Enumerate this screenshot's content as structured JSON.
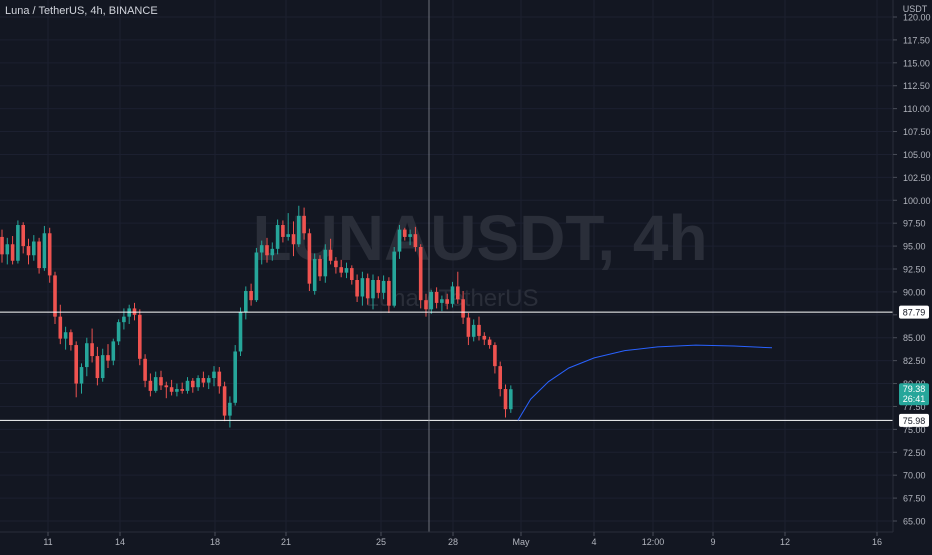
{
  "header": {
    "symbol_line": "Luna / TetherUS, 4h, BINANCE",
    "currency": "USDT"
  },
  "watermark": {
    "ticker": "LUNAUSDT, 4h",
    "description": "Luna / TetherUS"
  },
  "price_badge": {
    "price": "79.38",
    "countdown": "26:41"
  },
  "colors": {
    "background": "#131722",
    "up": "#26a69a",
    "down": "#ef5350",
    "projection": "#2962ff",
    "line": "#ffffff",
    "crosshair": "#9598a1",
    "axis_text": "#b2b5be"
  },
  "chart_data": {
    "type": "candlestick",
    "y_axis_ticks": [
      "120.00",
      "117.50",
      "115.00",
      "112.50",
      "110.00",
      "107.50",
      "105.00",
      "102.50",
      "100.00",
      "97.50",
      "95.00",
      "92.50",
      "90.00",
      "87.50",
      "85.00",
      "82.50",
      "80.00",
      "77.50",
      "75.00",
      "72.50",
      "70.00",
      "67.50",
      "65.00"
    ],
    "y_axis_range": [
      64,
      121
    ],
    "x_axis_ticks": [
      "11",
      "14",
      "18",
      "21",
      "25",
      "28",
      "May",
      "4",
      "12:00",
      "9",
      "12",
      "16"
    ],
    "horizontal_lines": [
      {
        "label": "87.79",
        "value": 87.79
      },
      {
        "label": "75.98",
        "value": 75.98
      }
    ],
    "candles_ohlc": [
      [
        96.0,
        96.8,
        93.2,
        94.1
      ],
      [
        94.1,
        95.9,
        93.0,
        95.2
      ],
      [
        95.2,
        96.1,
        93.0,
        93.4
      ],
      [
        93.4,
        97.8,
        93.1,
        97.3
      ],
      [
        97.3,
        97.6,
        94.2,
        95.0
      ],
      [
        95.0,
        95.8,
        93.0,
        94.0
      ],
      [
        94.0,
        96.2,
        93.4,
        95.5
      ],
      [
        95.5,
        95.9,
        92.0,
        92.6
      ],
      [
        92.6,
        97.2,
        92.3,
        96.4
      ],
      [
        96.4,
        97.0,
        91.0,
        91.8
      ],
      [
        91.8,
        92.2,
        86.5,
        87.3
      ],
      [
        87.3,
        88.6,
        84.3,
        84.9
      ],
      [
        84.9,
        86.2,
        83.7,
        85.6
      ],
      [
        85.6,
        85.9,
        83.6,
        84.2
      ],
      [
        84.2,
        84.6,
        78.5,
        80.0
      ],
      [
        80.0,
        82.2,
        78.9,
        81.8
      ],
      [
        81.8,
        85.0,
        80.8,
        84.4
      ],
      [
        84.4,
        86.0,
        82.3,
        83.0
      ],
      [
        83.0,
        84.0,
        79.8,
        80.6
      ],
      [
        80.6,
        83.8,
        80.2,
        83.1
      ],
      [
        83.1,
        84.3,
        81.7,
        82.5
      ],
      [
        82.5,
        84.9,
        82.0,
        84.6
      ],
      [
        84.6,
        87.0,
        84.2,
        86.7
      ],
      [
        86.7,
        88.2,
        85.9,
        87.3
      ],
      [
        87.3,
        88.6,
        86.5,
        88.2
      ],
      [
        88.2,
        88.8,
        86.9,
        87.5
      ],
      [
        87.5,
        88.1,
        82.0,
        82.7
      ],
      [
        82.7,
        83.2,
        79.6,
        80.3
      ],
      [
        80.3,
        81.1,
        78.6,
        79.2
      ],
      [
        79.2,
        81.3,
        79.0,
        80.7
      ],
      [
        80.7,
        81.4,
        79.3,
        79.8
      ],
      [
        79.8,
        80.2,
        78.4,
        79.6
      ],
      [
        79.6,
        80.4,
        78.7,
        79.1
      ],
      [
        79.1,
        80.0,
        78.6,
        79.4
      ],
      [
        79.4,
        80.1,
        78.9,
        79.2
      ],
      [
        79.2,
        80.7,
        78.9,
        80.3
      ],
      [
        80.3,
        80.6,
        79.0,
        79.6
      ],
      [
        79.6,
        80.9,
        79.2,
        80.6
      ],
      [
        80.6,
        81.3,
        79.6,
        80.1
      ],
      [
        80.1,
        80.9,
        79.4,
        80.6
      ],
      [
        80.6,
        81.9,
        79.7,
        81.3
      ],
      [
        81.3,
        81.8,
        78.9,
        79.7
      ],
      [
        79.7,
        80.2,
        75.9,
        76.5
      ],
      [
        76.5,
        78.6,
        75.2,
        77.9
      ],
      [
        77.9,
        84.2,
        77.6,
        83.5
      ],
      [
        83.5,
        88.3,
        83.0,
        87.8
      ],
      [
        87.8,
        90.6,
        87.0,
        90.1
      ],
      [
        90.1,
        90.9,
        88.5,
        89.1
      ],
      [
        89.1,
        94.8,
        88.9,
        94.3
      ],
      [
        94.3,
        95.6,
        93.0,
        95.1
      ],
      [
        95.1,
        95.9,
        93.2,
        94.0
      ],
      [
        94.0,
        95.4,
        93.4,
        94.7
      ],
      [
        94.7,
        97.9,
        94.1,
        97.3
      ],
      [
        97.3,
        97.8,
        95.4,
        96.0
      ],
      [
        96.0,
        98.6,
        95.6,
        96.3
      ],
      [
        96.3,
        97.7,
        93.9,
        95.2
      ],
      [
        95.2,
        99.4,
        94.9,
        98.3
      ],
      [
        98.3,
        99.2,
        95.7,
        96.4
      ],
      [
        96.4,
        96.9,
        90.1,
        90.9
      ],
      [
        90.1,
        94.2,
        89.7,
        93.6
      ],
      [
        93.6,
        94.0,
        91.2,
        91.7
      ],
      [
        91.7,
        95.2,
        91.0,
        94.6
      ],
      [
        94.6,
        95.8,
        93.0,
        93.4
      ],
      [
        93.4,
        93.8,
        92.0,
        92.7
      ],
      [
        92.7,
        93.5,
        91.6,
        92.1
      ],
      [
        92.1,
        93.2,
        91.5,
        92.6
      ],
      [
        92.6,
        92.9,
        90.8,
        91.3
      ],
      [
        91.3,
        91.9,
        88.9,
        89.5
      ],
      [
        89.5,
        92.2,
        88.5,
        91.5
      ],
      [
        91.5,
        92.0,
        88.6,
        89.3
      ],
      [
        89.3,
        91.9,
        88.1,
        91.3
      ],
      [
        91.3,
        91.7,
        89.3,
        89.9
      ],
      [
        89.9,
        91.8,
        89.2,
        91.2
      ],
      [
        91.2,
        91.6,
        87.7,
        88.5
      ],
      [
        88.5,
        94.9,
        88.3,
        94.4
      ],
      [
        94.4,
        97.3,
        93.6,
        96.8
      ],
      [
        96.8,
        97.0,
        95.6,
        96.0
      ],
      [
        96.0,
        96.8,
        95.1,
        96.3
      ],
      [
        96.3,
        97.1,
        94.4,
        94.9
      ],
      [
        94.9,
        95.2,
        88.2,
        89.1
      ],
      [
        89.1,
        89.8,
        87.3,
        88.1
      ],
      [
        88.1,
        90.2,
        87.6,
        90.0
      ],
      [
        90.0,
        90.5,
        88.2,
        88.8
      ],
      [
        88.8,
        89.6,
        87.9,
        89.2
      ],
      [
        89.2,
        89.8,
        88.1,
        88.7
      ],
      [
        88.7,
        91.1,
        88.3,
        90.6
      ],
      [
        90.6,
        92.2,
        88.7,
        89.2
      ],
      [
        89.2,
        90.1,
        86.5,
        87.2
      ],
      [
        87.2,
        87.7,
        84.2,
        85.1
      ],
      [
        85.1,
        87.0,
        84.6,
        86.4
      ],
      [
        86.4,
        87.3,
        84.7,
        85.2
      ],
      [
        85.2,
        85.6,
        84.2,
        84.8
      ],
      [
        84.8,
        85.1,
        83.8,
        84.2
      ],
      [
        84.2,
        84.5,
        81.1,
        81.9
      ],
      [
        81.9,
        82.4,
        78.6,
        79.4
      ],
      [
        79.4,
        79.9,
        76.3,
        77.2
      ],
      [
        77.2,
        79.8,
        76.8,
        79.38
      ]
    ],
    "projection_curve": [
      [
        0,
        76.0
      ],
      [
        0.05,
        78.3
      ],
      [
        0.12,
        80.2
      ],
      [
        0.2,
        81.7
      ],
      [
        0.3,
        82.8
      ],
      [
        0.42,
        83.6
      ],
      [
        0.55,
        84.0
      ],
      [
        0.7,
        84.2
      ],
      [
        0.85,
        84.1
      ],
      [
        1,
        83.9
      ]
    ]
  }
}
